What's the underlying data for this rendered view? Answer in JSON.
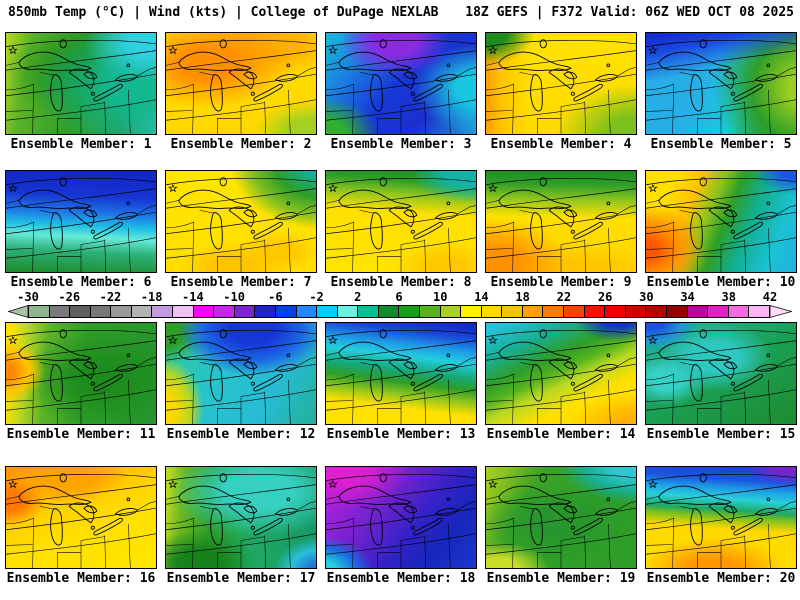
{
  "header": {
    "left": "850mb Temp (°C) | Wind (kts) | College of DuPage NEXLAB",
    "right": "18Z GEFS | F372 Valid: 06Z WED OCT 08 2025"
  },
  "colorbar": {
    "units": "°C",
    "tick_labels": [
      "-30",
      "-26",
      "-22",
      "-18",
      "-14",
      "-10",
      "-6",
      "-2",
      "2",
      "6",
      "10",
      "14",
      "18",
      "22",
      "26",
      "30",
      "34",
      "38",
      "42"
    ],
    "left_arrow_color": "#a8c4a0",
    "right_arrow_color": "#ffdcfa",
    "segments": [
      {
        "from": -30,
        "to": -28,
        "color": "#8fb48f"
      },
      {
        "from": -28,
        "to": -26,
        "color": "#7a7a7a"
      },
      {
        "from": -26,
        "to": -24,
        "color": "#5e5e5e"
      },
      {
        "from": -24,
        "to": -22,
        "color": "#777777"
      },
      {
        "from": -22,
        "to": -20,
        "color": "#989898"
      },
      {
        "from": -20,
        "to": -18,
        "color": "#b4b4b4"
      },
      {
        "from": -18,
        "to": -16,
        "color": "#c49ade"
      },
      {
        "from": -16,
        "to": -14,
        "color": "#eec2ee"
      },
      {
        "from": -14,
        "to": -12,
        "color": "#ff00ff"
      },
      {
        "from": -12,
        "to": -10,
        "color": "#cc22ee"
      },
      {
        "from": -10,
        "to": -8,
        "color": "#7d22d4"
      },
      {
        "from": -8,
        "to": -6,
        "color": "#2020cc"
      },
      {
        "from": -6,
        "to": -4,
        "color": "#0044e8"
      },
      {
        "from": -4,
        "to": -2,
        "color": "#2288ff"
      },
      {
        "from": -2,
        "to": 0,
        "color": "#00ccff"
      },
      {
        "from": 0,
        "to": 2,
        "color": "#6cf0e0"
      },
      {
        "from": 2,
        "to": 4,
        "color": "#00c291"
      },
      {
        "from": 4,
        "to": 6,
        "color": "#128b2a"
      },
      {
        "from": 6,
        "to": 8,
        "color": "#17a017"
      },
      {
        "from": 8,
        "to": 10,
        "color": "#56b41e"
      },
      {
        "from": 10,
        "to": 12,
        "color": "#a8d21e"
      },
      {
        "from": 12,
        "to": 14,
        "color": "#fff200"
      },
      {
        "from": 14,
        "to": 16,
        "color": "#ffd800"
      },
      {
        "from": 16,
        "to": 18,
        "color": "#f2c400"
      },
      {
        "from": 18,
        "to": 20,
        "color": "#ff9e00"
      },
      {
        "from": 20,
        "to": 22,
        "color": "#ff7a00"
      },
      {
        "from": 22,
        "to": 24,
        "color": "#ff4400"
      },
      {
        "from": 24,
        "to": 26,
        "color": "#fb0f00"
      },
      {
        "from": 26,
        "to": 28,
        "color": "#ee0000"
      },
      {
        "from": 28,
        "to": 30,
        "color": "#d40000"
      },
      {
        "from": 30,
        "to": 32,
        "color": "#b80000"
      },
      {
        "from": 32,
        "to": 34,
        "color": "#950000"
      },
      {
        "from": 34,
        "to": 36,
        "color": "#c2009e"
      },
      {
        "from": 36,
        "to": 38,
        "color": "#e61ec8"
      },
      {
        "from": 38,
        "to": 40,
        "color": "#f56ae0"
      },
      {
        "from": 40,
        "to": 42,
        "color": "#fcb4f2"
      }
    ]
  },
  "members": [
    {
      "id": 1,
      "label": "Ensemble Member: 1"
    },
    {
      "id": 2,
      "label": "Ensemble Member: 2"
    },
    {
      "id": 3,
      "label": "Ensemble Member: 3"
    },
    {
      "id": 4,
      "label": "Ensemble Member: 4"
    },
    {
      "id": 5,
      "label": "Ensemble Member: 5"
    },
    {
      "id": 6,
      "label": "Ensemble Member: 6"
    },
    {
      "id": 7,
      "label": "Ensemble Member: 7"
    },
    {
      "id": 8,
      "label": "Ensemble Member: 8"
    },
    {
      "id": 9,
      "label": "Ensemble Member: 9"
    },
    {
      "id": 10,
      "label": "Ensemble Member: 10"
    },
    {
      "id": 11,
      "label": "Ensemble Member: 11"
    },
    {
      "id": 12,
      "label": "Ensemble Member: 12"
    },
    {
      "id": 13,
      "label": "Ensemble Member: 13"
    },
    {
      "id": 14,
      "label": "Ensemble Member: 14"
    },
    {
      "id": 15,
      "label": "Ensemble Member: 15"
    },
    {
      "id": 16,
      "label": "Ensemble Member: 16"
    },
    {
      "id": 17,
      "label": "Ensemble Member: 17"
    },
    {
      "id": 18,
      "label": "Ensemble Member: 18"
    },
    {
      "id": 19,
      "label": "Ensemble Member: 19"
    },
    {
      "id": 20,
      "label": "Ensemble Member: 20"
    }
  ]
}
